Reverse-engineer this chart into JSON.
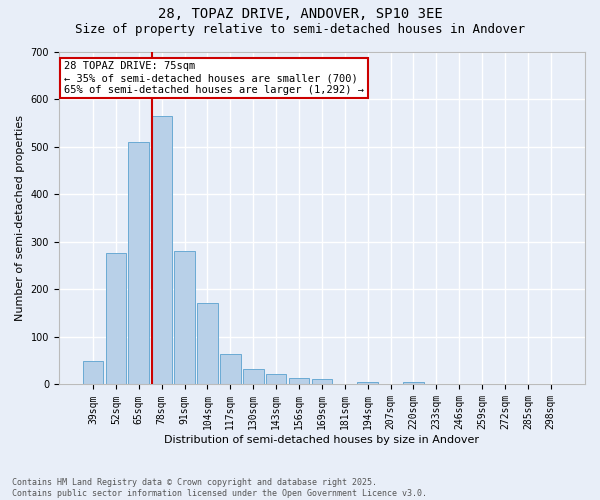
{
  "title1": "28, TOPAZ DRIVE, ANDOVER, SP10 3EE",
  "title2": "Size of property relative to semi-detached houses in Andover",
  "xlabel": "Distribution of semi-detached houses by size in Andover",
  "ylabel": "Number of semi-detached properties",
  "categories": [
    "39sqm",
    "52sqm",
    "65sqm",
    "78sqm",
    "91sqm",
    "104sqm",
    "117sqm",
    "130sqm",
    "143sqm",
    "156sqm",
    "169sqm",
    "181sqm",
    "194sqm",
    "207sqm",
    "220sqm",
    "233sqm",
    "246sqm",
    "259sqm",
    "272sqm",
    "285sqm",
    "298sqm"
  ],
  "values": [
    50,
    277,
    510,
    565,
    280,
    172,
    65,
    33,
    23,
    14,
    11,
    0,
    5,
    0,
    5,
    0,
    0,
    0,
    0,
    0,
    0
  ],
  "bar_color": "#b8d0e8",
  "bar_edge_color": "#6aaad4",
  "vline_color": "#cc0000",
  "vline_pos": 2.57,
  "annotation_title": "28 TOPAZ DRIVE: 75sqm",
  "annotation_line2": "← 35% of semi-detached houses are smaller (700)",
  "annotation_line3": "65% of semi-detached houses are larger (1,292) →",
  "annotation_box_color": "#cc0000",
  "ylim": [
    0,
    700
  ],
  "yticks": [
    0,
    100,
    200,
    300,
    400,
    500,
    600,
    700
  ],
  "footer_line1": "Contains HM Land Registry data © Crown copyright and database right 2025.",
  "footer_line2": "Contains public sector information licensed under the Open Government Licence v3.0.",
  "bg_color": "#e8eef8",
  "grid_color": "#ffffff",
  "title_fontsize": 10,
  "subtitle_fontsize": 9,
  "tick_fontsize": 7,
  "label_fontsize": 8
}
